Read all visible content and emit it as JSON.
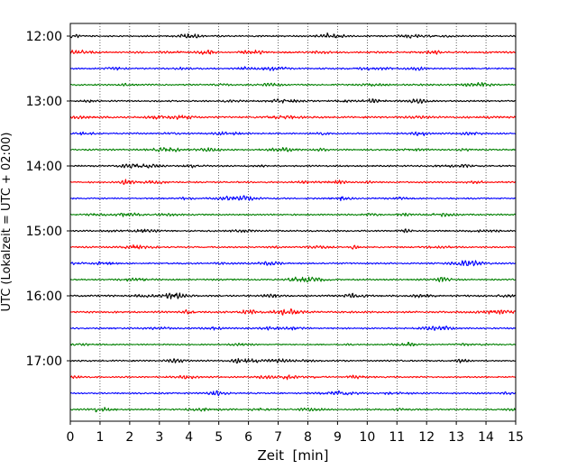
{
  "chart_data": {
    "type": "line",
    "title": "",
    "xlabel": "Zeit  [min]",
    "ylabel": "UTC (Lokalzeit = UTC + 02:00)",
    "xlim": [
      0,
      15
    ],
    "x_ticks": [
      "0",
      "1",
      "2",
      "3",
      "4",
      "5",
      "6",
      "7",
      "8",
      "9",
      "10",
      "11",
      "12",
      "13",
      "14",
      "15"
    ],
    "y_ticks": [
      "12:00",
      "13:00",
      "14:00",
      "15:00",
      "16:00",
      "17:00"
    ],
    "grid": "vertical dotted lines at each minute",
    "trace_colors": [
      "#000000",
      "#ff0000",
      "#0000ff",
      "#008000"
    ],
    "series": [
      {
        "start": "12:00",
        "color": "#000000",
        "level": 0.5
      },
      {
        "start": "12:15",
        "color": "#ff0000",
        "level": 0.6
      },
      {
        "start": "12:30",
        "color": "#0000ff",
        "level": 0.5
      },
      {
        "start": "12:45",
        "color": "#008000",
        "level": 0.5
      },
      {
        "start": "13:00",
        "color": "#000000",
        "level": 0.5
      },
      {
        "start": "13:15",
        "color": "#ff0000",
        "level": 0.6
      },
      {
        "start": "13:30",
        "color": "#0000ff",
        "level": 0.5
      },
      {
        "start": "13:45",
        "color": "#008000",
        "level": 0.5
      },
      {
        "start": "14:00",
        "color": "#000000",
        "level": 0.5
      },
      {
        "start": "14:15",
        "color": "#ff0000",
        "level": 0.5
      },
      {
        "start": "14:30",
        "color": "#0000ff",
        "level": 0.5
      },
      {
        "start": "14:45",
        "color": "#008000",
        "level": 0.5
      },
      {
        "start": "15:00",
        "color": "#000000",
        "level": 0.5
      },
      {
        "start": "15:15",
        "color": "#ff0000",
        "level": 0.5
      },
      {
        "start": "15:30",
        "color": "#0000ff",
        "level": 0.5
      },
      {
        "start": "15:45",
        "color": "#008000",
        "level": 0.5
      },
      {
        "start": "16:00",
        "color": "#000000",
        "level": 0.6
      },
      {
        "start": "16:15",
        "color": "#ff0000",
        "level": 0.6
      },
      {
        "start": "16:30",
        "color": "#0000ff",
        "level": 0.5
      },
      {
        "start": "16:45",
        "color": "#008000",
        "level": 0.4
      },
      {
        "start": "17:00",
        "color": "#000000",
        "level": 0.5
      },
      {
        "start": "17:15",
        "color": "#ff0000",
        "level": 0.5
      },
      {
        "start": "17:30",
        "color": "#0000ff",
        "level": 0.5
      },
      {
        "start": "17:45",
        "color": "#008000",
        "level": 0.5
      }
    ]
  }
}
